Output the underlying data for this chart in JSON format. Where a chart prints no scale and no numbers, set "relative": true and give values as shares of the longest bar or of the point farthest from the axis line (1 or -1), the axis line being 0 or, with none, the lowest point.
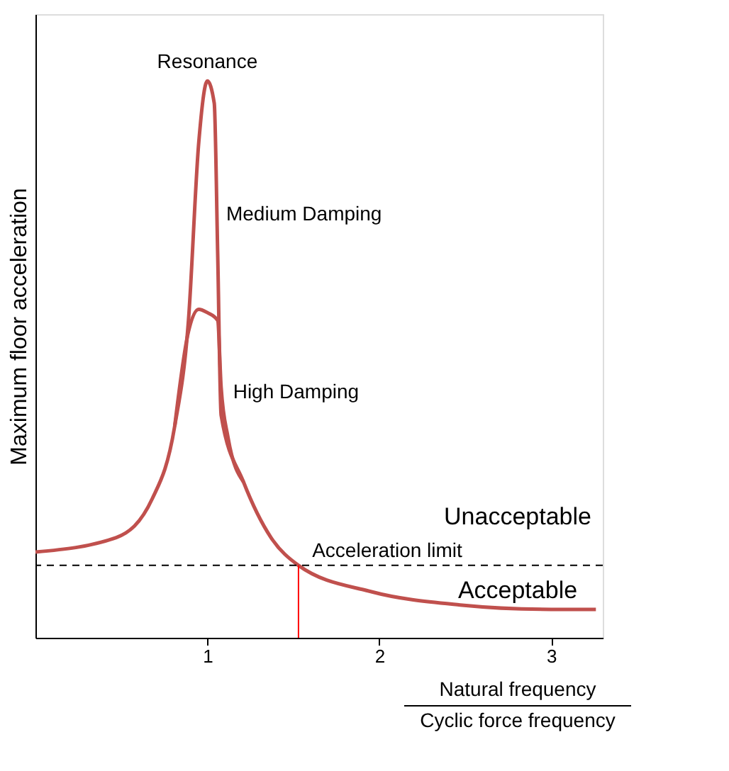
{
  "chart_data": {
    "type": "line",
    "relative": true,
    "xlabel": "Natural frequency\nCyclic force frequency",
    "ylabel": "Maximum floor acceleration",
    "xlim": [
      0,
      3.3
    ],
    "xticks": [
      1,
      2,
      3
    ],
    "grid": false,
    "legend": false,
    "line_style": "solid",
    "marker": "none",
    "series": [
      {
        "color": "#c0504d",
        "x": [
          0,
          0.47,
          0.68,
          0.81,
          0.89,
          0.95,
          1.0,
          1.04,
          1.06,
          1.08,
          1.21,
          1.37,
          1.53,
          1.95,
          2.47,
          3.0,
          3.26
        ],
        "values": [
          0.154,
          0.18,
          0.25,
          0.38,
          0.57,
          0.89,
          1.0,
          0.96,
          0.69,
          0.4,
          0.28,
          0.18,
          0.13,
          0.083,
          0.059,
          0.051,
          0.051
        ]
      },
      {
        "color": "#c0504d",
        "x": [
          0.81,
          0.89,
          0.95,
          1.0,
          1.06,
          1.08,
          1.12,
          1.21
        ],
        "values": [
          0.38,
          0.55,
          0.59,
          0.584,
          0.57,
          0.45,
          0.36,
          0.28
        ]
      }
    ],
    "ref_lines": [
      {
        "axis": "y",
        "value": 0.13,
        "label": "Acceleration limit",
        "line_style": "dashed",
        "color": "#000000"
      },
      {
        "axis": "x",
        "value": 1.53,
        "label": null,
        "color": "#ff0000"
      }
    ],
    "annotations": [
      {
        "text": "Resonance",
        "x": 1.0,
        "y": 1.0
      },
      {
        "text": "Medium Damping",
        "x": 1.06,
        "y": 0.76
      },
      {
        "text": "High Damping",
        "x": 1.1,
        "y": 0.44
      },
      "Unacceptable",
      "Acceptable"
    ]
  }
}
